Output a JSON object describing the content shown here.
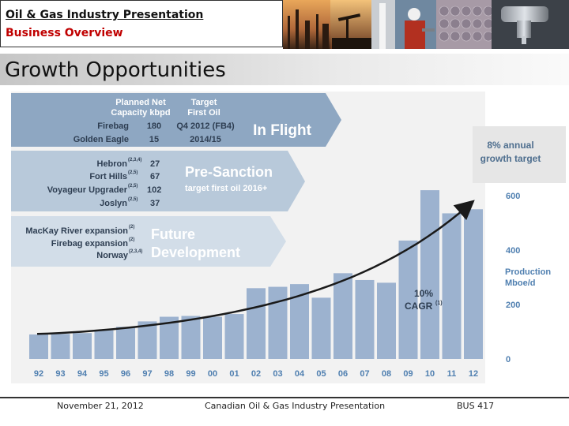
{
  "header": {
    "title": "Oil & Gas Industry Presentation",
    "subtitle": "Business Overview"
  },
  "slide": {
    "title": "Growth Opportunities"
  },
  "footer": {
    "date": "November 21, 2012",
    "center": "Canadian Oil & Gas Industry Presentation",
    "right": "BUS 417"
  },
  "colors": {
    "bar": "#9cb2cf",
    "arrow_band_1": "#8ea7c2",
    "arrow_band_2": "#b8c9da",
    "arrow_band_3": "#d2dde8",
    "accent_text": "#4f7fb0",
    "title_bar": "#d0d0d0"
  },
  "panels": {
    "in_flight": {
      "col_headers": [
        [
          "Planned Net",
          "Capacity kbpd"
        ],
        [
          "Target",
          "First Oil"
        ]
      ],
      "rows": [
        {
          "name": "Firebag",
          "sup": "",
          "cap": "180",
          "date": "Q4 2012 (FB4)"
        },
        {
          "name": "Golden Eagle",
          "sup": "",
          "cap": "15",
          "date": "2014/15"
        }
      ],
      "label": "In Flight"
    },
    "pre_sanction": {
      "rows": [
        {
          "name": "Hebron",
          "sup": "(2,3,4)",
          "cap": "27"
        },
        {
          "name": "Fort Hills",
          "sup": "(2,5)",
          "cap": "67"
        },
        {
          "name": "Voyageur Upgrader",
          "sup": "(2,5)",
          "cap": "102"
        },
        {
          "name": "Joslyn",
          "sup": "(2,5)",
          "cap": "37"
        }
      ],
      "label": "Pre-Sanction",
      "sublabel": "target first oil 2016+"
    },
    "future": {
      "rows": [
        {
          "name": "MacKay River expansion",
          "sup": "(2)"
        },
        {
          "name": "Firebag expansion",
          "sup": "(2)"
        },
        {
          "name": "Norway",
          "sup": "(2,3,4)"
        }
      ],
      "label_line1": "Future",
      "label_line2": "Development"
    }
  },
  "chart_data": {
    "type": "bar",
    "categories": [
      "92",
      "93",
      "94",
      "95",
      "96",
      "97",
      "98",
      "99",
      "00",
      "01",
      "02",
      "03",
      "04",
      "05",
      "06",
      "07",
      "08",
      "09",
      "10",
      "11",
      "12"
    ],
    "values": [
      90,
      92,
      95,
      105,
      118,
      138,
      155,
      158,
      155,
      165,
      260,
      265,
      275,
      225,
      315,
      290,
      280,
      435,
      620,
      535,
      550
    ],
    "ylim": [
      0,
      650
    ],
    "y_ticks": [
      "0",
      "200",
      "400",
      "600"
    ],
    "ylabel_line1": "Production",
    "ylabel_line2": "Mboe/d",
    "annotation_cagr": "10%",
    "annotation_cagr_label": "CAGR",
    "annotation_cagr_sup": "(1)",
    "annotation_target_line1": "8% annual",
    "annotation_target_line2": "growth target",
    "trend_start": 92,
    "trend_end": 575
  }
}
